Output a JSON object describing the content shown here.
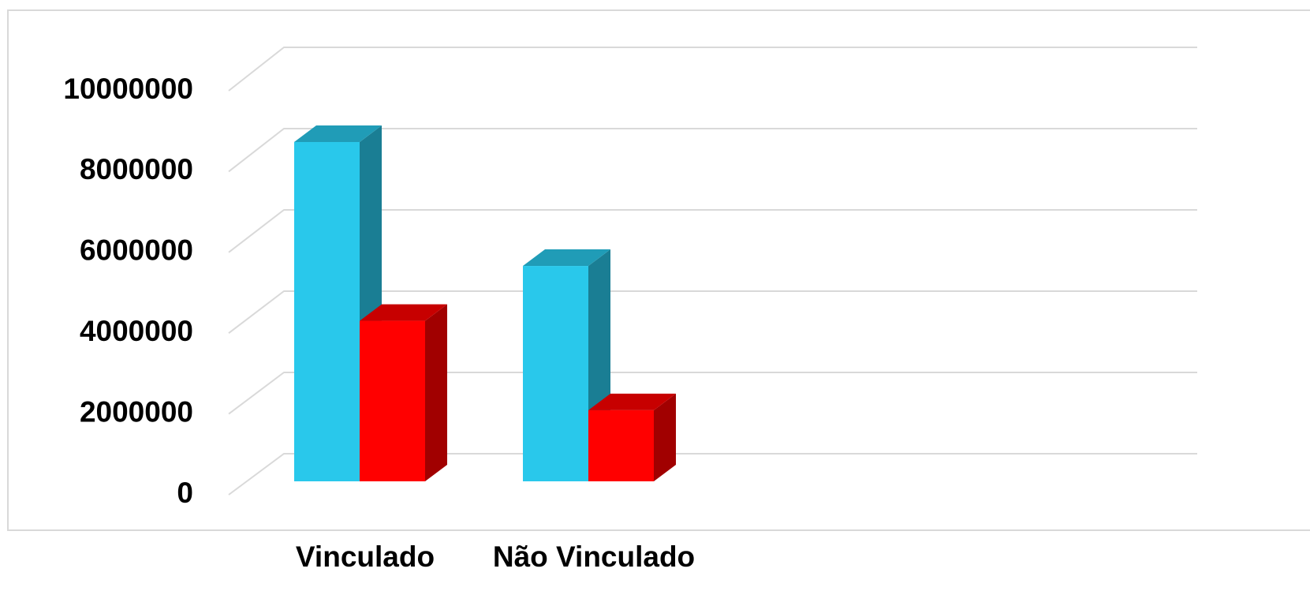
{
  "chart_data": {
    "type": "bar3d",
    "categories": [
      "Vinculado",
      "Não Vinculado"
    ],
    "series": [
      {
        "color": "#29c8eb",
        "values": [
          8350000,
          5300000
        ]
      },
      {
        "color": "#ff0000",
        "values": [
          3950000,
          1750000
        ]
      }
    ],
    "ylim": [
      0,
      10000000
    ],
    "yticks": [
      0,
      2000000,
      4000000,
      6000000,
      8000000,
      10000000
    ],
    "grid": true
  }
}
